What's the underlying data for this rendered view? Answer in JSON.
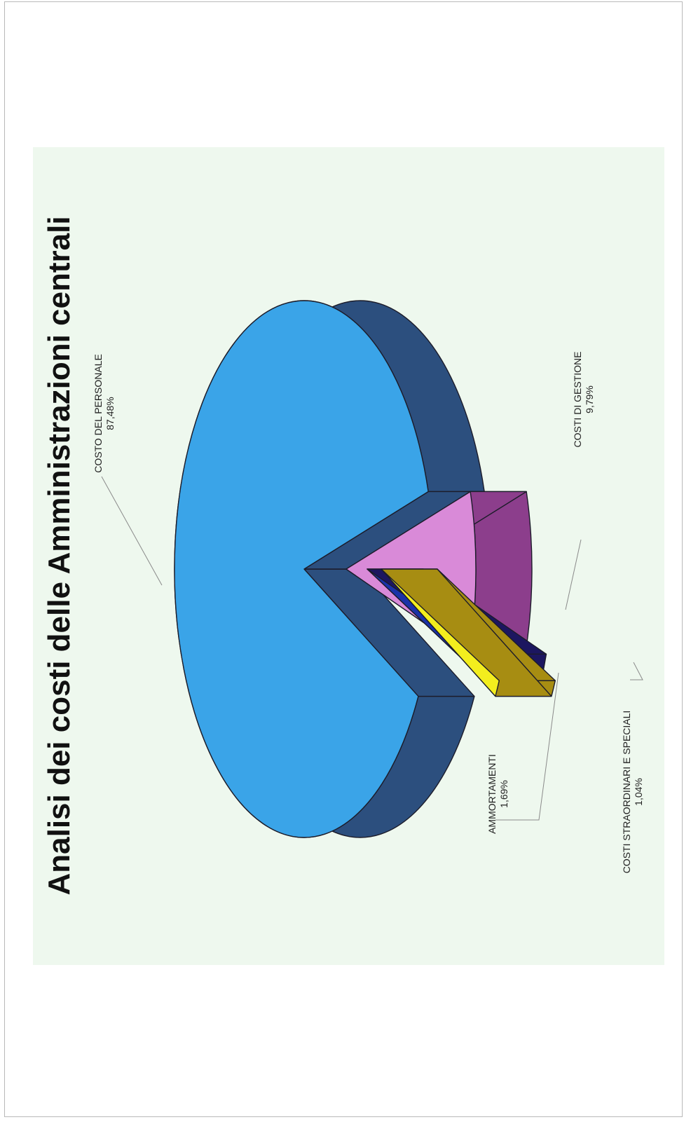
{
  "chart_data": {
    "type": "pie",
    "title": "Analisi dei costi delle Amministrazioni centrali",
    "slices": [
      {
        "label": "COSTO DEL PERSONALE",
        "value": 87.48,
        "value_label": "87,48%",
        "top_color": "#3aa4e8",
        "side_color": "#2c4f7e"
      },
      {
        "label": "COSTI DI GESTIONE",
        "value": 9.79,
        "value_label": "9,79%",
        "top_color": "#d98ad8",
        "side_color": "#8c3e8c"
      },
      {
        "label": "AMMORTAMENTI",
        "value": 1.69,
        "value_label": "1,69%",
        "top_color": "#1b33a8",
        "side_color": "#1c1660"
      },
      {
        "label": "COSTI STRAORDINARI E SPECIALI",
        "value": 1.04,
        "value_label": "1,04%",
        "top_color": "#f3ee1e",
        "side_color": "#a78d12"
      }
    ],
    "legend": "none",
    "three_d": true,
    "exploded": [
      "COSTI DI GESTIONE",
      "AMMORTAMENTI",
      "COSTI STRAORDINARI E SPECIALI"
    ]
  }
}
